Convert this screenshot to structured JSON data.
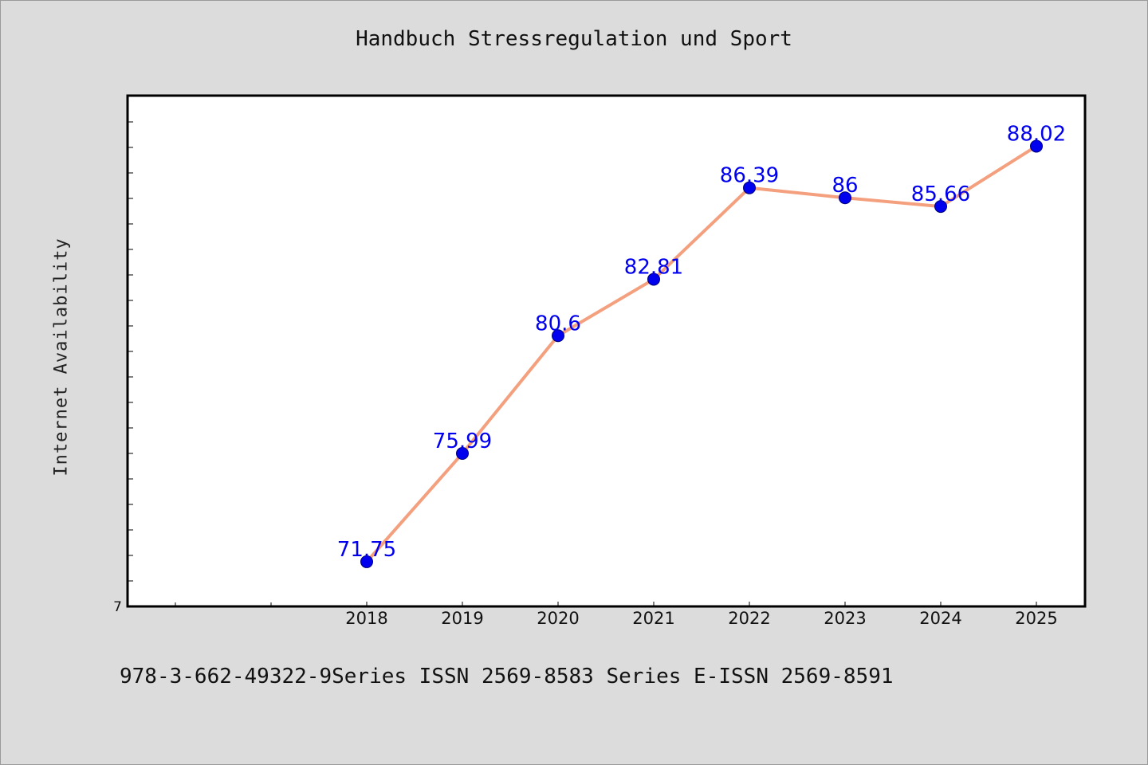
{
  "chart_data": {
    "type": "line",
    "title": "Handbuch Stressregulation und Sport",
    "ylabel": "Internet Availability",
    "xlabel": "",
    "categories": [
      "2018",
      "2019",
      "2020",
      "2021",
      "2022",
      "2023",
      "2024",
      "2025"
    ],
    "values": [
      71.75,
      75.99,
      80.6,
      82.81,
      86.39,
      86,
      85.66,
      88.02
    ],
    "data_labels": [
      "71.75",
      "75.99",
      "80.6",
      "82.81",
      "86.39",
      "86",
      "85.66",
      "88.02"
    ],
    "ylim": [
      70,
      90
    ],
    "y_tick_labels": [
      "7"
    ],
    "grid": false,
    "legend": "none",
    "line_color": "#f4a07e",
    "marker_color": "#0000ee",
    "label_color": "#0000ee"
  },
  "footer": {
    "text": "978-3-662-49322-9Series ISSN 2569-8583 Series E-ISSN 2569-8591"
  },
  "colors": {
    "background": "#dcdcdc",
    "plot_background": "#ffffff"
  }
}
